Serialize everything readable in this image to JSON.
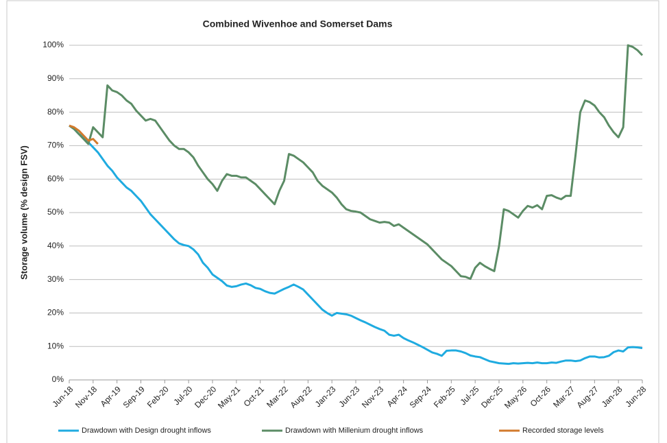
{
  "chart_data": {
    "type": "line",
    "title": "Combined Wivenhoe and Somerset Dams",
    "y_label": "Storage volume  (% design FSV)",
    "categories": [
      "Jun-18",
      null,
      null,
      null,
      null,
      "Nov-18",
      null,
      null,
      null,
      null,
      "Apr-19",
      null,
      null,
      null,
      null,
      "Sep-19",
      null,
      null,
      null,
      null,
      "Feb-20",
      null,
      null,
      null,
      null,
      "Jul-20",
      null,
      null,
      null,
      null,
      "Dec-20",
      null,
      null,
      null,
      null,
      "May-21",
      null,
      null,
      null,
      null,
      "Oct-21",
      null,
      null,
      null,
      null,
      "Mar-22",
      null,
      null,
      null,
      null,
      "Aug-22",
      null,
      null,
      null,
      null,
      "Jan-23",
      null,
      null,
      null,
      null,
      "Jun-23",
      null,
      null,
      null,
      null,
      "Nov-23",
      null,
      null,
      null,
      null,
      "Apr-24",
      null,
      null,
      null,
      null,
      "Sep-24",
      null,
      null,
      null,
      null,
      "Feb-25",
      null,
      null,
      null,
      null,
      "Jul-25",
      null,
      null,
      null,
      null,
      "Dec-25",
      null,
      null,
      null,
      null,
      "May-26",
      null,
      null,
      null,
      null,
      "Oct-26",
      null,
      null,
      null,
      null,
      "Mar-27",
      null,
      null,
      null,
      null,
      "Aug-27",
      null,
      null,
      null,
      null,
      "Jan-28",
      null,
      null,
      null,
      null,
      "Jun-28"
    ],
    "series": [
      {
        "name": "Drawdown with Design drought inflows",
        "color": "#1fabe0",
        "values": [
          76,
          75,
          73.5,
          72.5,
          71,
          69.5,
          68,
          66,
          64,
          62.5,
          60.5,
          59,
          57.5,
          56.5,
          55,
          53.5,
          51.5,
          49.5,
          48,
          46.5,
          45,
          43.5,
          42,
          40.8,
          40.3,
          40,
          39,
          37.5,
          35,
          33.5,
          31.5,
          30.5,
          29.5,
          28.2,
          27.8,
          28,
          28.5,
          28.8,
          28.3,
          27.5,
          27.2,
          26.5,
          26,
          25.8,
          26.5,
          27.2,
          27.8,
          28.5,
          27.8,
          27,
          25.5,
          24,
          22.5,
          21,
          20,
          19.2,
          20,
          19.8,
          19.6,
          19.2,
          18.5,
          17.8,
          17.2,
          16.5,
          15.8,
          15.2,
          14.7,
          13.5,
          13.2,
          13.5,
          12.5,
          11.8,
          11.2,
          10.5,
          9.8,
          9,
          8.2,
          7.8,
          7.2,
          8.7,
          8.8,
          8.8,
          8.5,
          8,
          7.3,
          7,
          6.8,
          6.2,
          5.6,
          5.3,
          5,
          4.9,
          4.8,
          5,
          4.9,
          5,
          5.1,
          5,
          5.2,
          5,
          5,
          5.2,
          5.1,
          5.5,
          5.8,
          5.8,
          5.6,
          5.8,
          6.5,
          7,
          7,
          6.7,
          6.8,
          7.2,
          8.3,
          8.8,
          8.5,
          9.7,
          9.8,
          9.7,
          9.5
        ]
      },
      {
        "name": "Drawdown with Millenium drought inflows",
        "color": "#5b8c65",
        "values": [
          76,
          75,
          73.5,
          72,
          70.5,
          75.5,
          74,
          72.5,
          88,
          86.5,
          86,
          85,
          83.5,
          82.5,
          80.5,
          79,
          77.5,
          78,
          77.5,
          75.5,
          73.5,
          71.5,
          70,
          69,
          69,
          68,
          66.5,
          64,
          62,
          60,
          58.5,
          56.5,
          59.5,
          61.5,
          61,
          61,
          60.5,
          60.5,
          59.5,
          58.5,
          57,
          55.5,
          54,
          52.5,
          56.5,
          59.5,
          67.5,
          67,
          66,
          65,
          63.5,
          62,
          59.5,
          58,
          57,
          56,
          54.5,
          52.5,
          51,
          50.5,
          50.3,
          50,
          49,
          48,
          47.5,
          47,
          47.2,
          47,
          46,
          46.5,
          45.5,
          44.5,
          43.5,
          42.5,
          41.5,
          40.5,
          39,
          37.5,
          36,
          35,
          34,
          32.5,
          31,
          30.8,
          30.2,
          33.5,
          35,
          34,
          33.2,
          32.5,
          40,
          51,
          50.5,
          49.5,
          48.5,
          50.5,
          52,
          51.5,
          52.2,
          51,
          55,
          55.2,
          54.5,
          54,
          55,
          55,
          67,
          80,
          83.5,
          83,
          82,
          80,
          78.5,
          76,
          74,
          72.5,
          75.5,
          100,
          99.5,
          98.5,
          97
        ]
      },
      {
        "name": "Recorded storage levels",
        "color": "#d27a2c",
        "values": [
          76,
          75.5,
          74.5,
          73,
          71.5,
          72,
          70.5,
          null,
          null,
          null,
          null,
          null,
          null,
          null,
          null,
          null,
          null,
          null,
          null,
          null,
          null,
          null,
          null,
          null,
          null,
          null,
          null,
          null,
          null,
          null,
          null,
          null,
          null,
          null,
          null,
          null,
          null,
          null,
          null,
          null,
          null,
          null,
          null,
          null,
          null,
          null,
          null,
          null,
          null,
          null,
          null,
          null,
          null,
          null,
          null,
          null,
          null,
          null,
          null,
          null,
          null,
          null,
          null,
          null,
          null,
          null,
          null,
          null,
          null,
          null,
          null,
          null,
          null,
          null,
          null,
          null,
          null,
          null,
          null,
          null,
          null,
          null,
          null,
          null,
          null,
          null,
          null,
          null,
          null,
          null,
          null,
          null,
          null,
          null,
          null,
          null,
          null,
          null,
          null,
          null,
          null,
          null,
          null,
          null,
          null,
          null,
          null,
          null,
          null,
          null,
          null,
          null,
          null,
          null,
          null,
          null,
          null,
          null,
          null,
          null,
          null
        ]
      }
    ],
    "ylim": [
      0,
      100
    ],
    "yticks": [
      {
        "value": 0,
        "label": "0%"
      },
      {
        "value": 10,
        "label": "10%"
      },
      {
        "value": 20,
        "label": "20%"
      },
      {
        "value": 30,
        "label": "30%"
      },
      {
        "value": 40,
        "label": "40%"
      },
      {
        "value": 50,
        "label": "50%"
      },
      {
        "value": 60,
        "label": "60%"
      },
      {
        "value": 70,
        "label": "70%"
      },
      {
        "value": 80,
        "label": "80%"
      },
      {
        "value": 90,
        "label": "90%"
      },
      {
        "value": 100,
        "label": "100%"
      }
    ],
    "grid": true,
    "legend": "bottom"
  }
}
